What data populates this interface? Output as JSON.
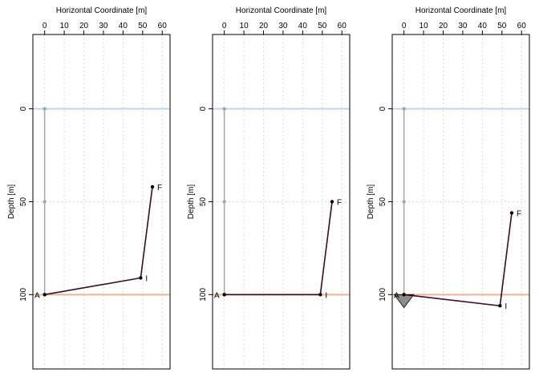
{
  "chart_data": [
    {
      "type": "line",
      "xlabel": "Horizontal Coordinate [m]",
      "ylabel": "Depth [m]",
      "xlim": [
        -6,
        64
      ],
      "ylim": [
        -40,
        140
      ],
      "y_reversed": true,
      "x_ticks": [
        0,
        10,
        20,
        30,
        40,
        50,
        60
      ],
      "y_ticks": [
        0,
        50,
        100
      ],
      "grid": true,
      "surface_depth": 0,
      "reference_depth": 100,
      "colors": {
        "surface": "#c4d2f5",
        "reference": "#e9b593",
        "vertical": "#a6a6a6",
        "path": "#3b0b24",
        "triangle": "#8c8c8c"
      },
      "vertical_points": [
        {
          "x": 0,
          "y": 0
        },
        {
          "x": 0,
          "y": 50
        },
        {
          "x": 0,
          "y": 100
        }
      ],
      "path": [
        {
          "label": "A",
          "x": 0,
          "y": 100
        },
        {
          "label": "I",
          "x": 49,
          "y": 91
        },
        {
          "label": "F",
          "x": 55,
          "y": 42
        }
      ],
      "triangle": null
    },
    {
      "type": "line",
      "xlabel": "Horizontal Coordinate [m]",
      "ylabel": "Depth [m]",
      "xlim": [
        -6,
        64
      ],
      "ylim": [
        -40,
        140
      ],
      "y_reversed": true,
      "x_ticks": [
        0,
        10,
        20,
        30,
        40,
        50,
        60
      ],
      "y_ticks": [
        0,
        50,
        100
      ],
      "grid": true,
      "surface_depth": 0,
      "reference_depth": 100,
      "colors": {
        "surface": "#c4d2f5",
        "reference": "#e9b593",
        "vertical": "#a6a6a6",
        "path": "#3b0b24",
        "triangle": "#8c8c8c"
      },
      "vertical_points": [
        {
          "x": 0,
          "y": 0
        },
        {
          "x": 0,
          "y": 50
        },
        {
          "x": 0,
          "y": 100
        }
      ],
      "path": [
        {
          "label": "A",
          "x": 0,
          "y": 100
        },
        {
          "label": "I",
          "x": 49,
          "y": 100
        },
        {
          "label": "F",
          "x": 55,
          "y": 50
        }
      ],
      "triangle": null
    },
    {
      "type": "line",
      "xlabel": "Horizontal Coordinate [m]",
      "ylabel": "Depth [m]",
      "xlim": [
        -6,
        64
      ],
      "ylim": [
        -40,
        140
      ],
      "y_reversed": true,
      "x_ticks": [
        0,
        10,
        20,
        30,
        40,
        50,
        60
      ],
      "y_ticks": [
        0,
        50,
        100
      ],
      "grid": true,
      "surface_depth": 0,
      "reference_depth": 100,
      "colors": {
        "surface": "#c4d2f5",
        "reference": "#e9b593",
        "vertical": "#a6a6a6",
        "path": "#3b0b24",
        "triangle": "#8c8c8c"
      },
      "vertical_points": [
        {
          "x": 0,
          "y": 0
        },
        {
          "x": 0,
          "y": 50
        },
        {
          "x": 0,
          "y": 100
        }
      ],
      "path": [
        {
          "label": "A",
          "x": 0,
          "y": 100
        },
        {
          "label": "I",
          "x": 49,
          "y": 106
        },
        {
          "label": "F",
          "x": 55,
          "y": 56
        }
      ],
      "triangle": [
        {
          "x": -5,
          "y": 100
        },
        {
          "x": 5,
          "y": 100
        },
        {
          "x": 0,
          "y": 107
        }
      ]
    }
  ]
}
